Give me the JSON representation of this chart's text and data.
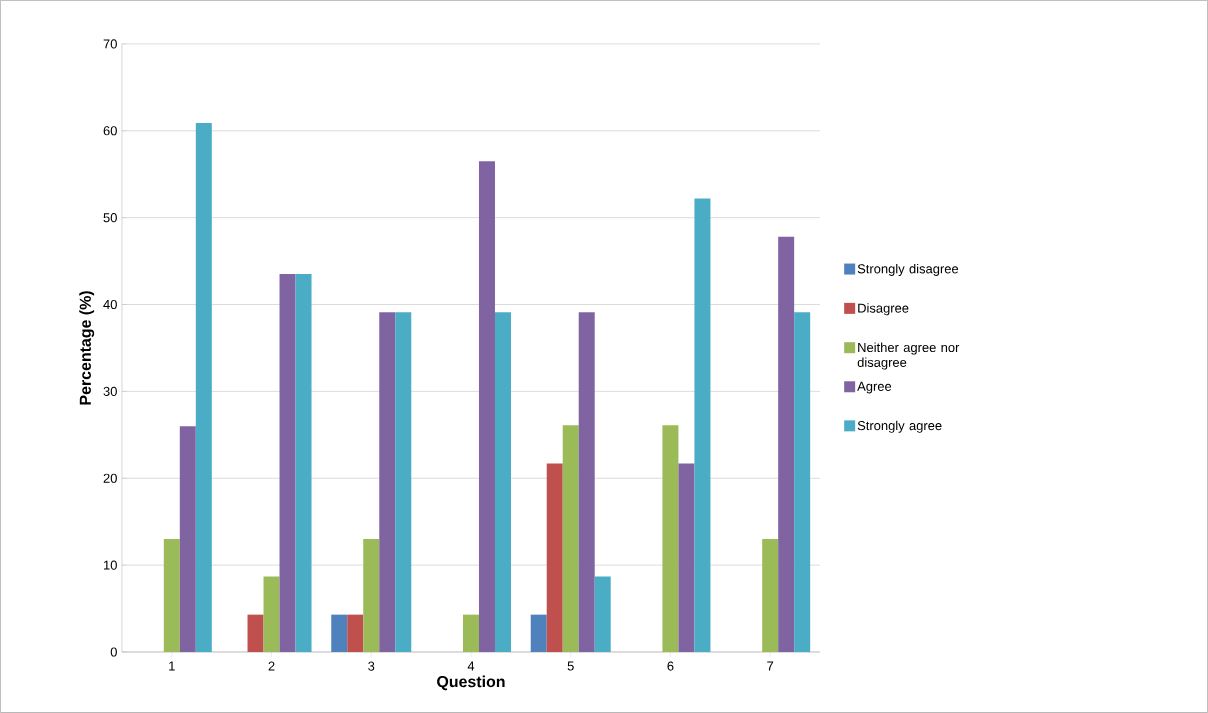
{
  "chart_data": {
    "type": "bar",
    "categories": [
      "1",
      "2",
      "3",
      "4",
      "5",
      "6",
      "7"
    ],
    "xlabel": "Question",
    "ylabel": "Percentage  (%)",
    "ylim": [
      0,
      70
    ],
    "yticks": [
      0,
      10,
      20,
      30,
      40,
      50,
      60,
      70
    ],
    "grid": "y",
    "legend": "right",
    "series": [
      {
        "name": "Strongly disagree",
        "color": "#4f81bd",
        "values": [
          0,
          0,
          4.3,
          0,
          4.3,
          0,
          0
        ]
      },
      {
        "name": "Disagree",
        "color": "#c0504d",
        "values": [
          0,
          4.3,
          4.3,
          0,
          21.7,
          0,
          0
        ]
      },
      {
        "name": "Neither agree nor disagree",
        "color": "#9bbb59",
        "values": [
          13,
          8.7,
          13,
          4.3,
          26.1,
          26.1,
          13
        ]
      },
      {
        "name": "Agree",
        "color": "#8064a2",
        "values": [
          26,
          43.5,
          39.1,
          56.5,
          39.1,
          21.7,
          47.8
        ]
      },
      {
        "name": "Strongly agree",
        "color": "#4bacc6",
        "values": [
          60.9,
          43.5,
          39.1,
          39.1,
          8.7,
          52.2,
          39.1
        ]
      }
    ]
  }
}
